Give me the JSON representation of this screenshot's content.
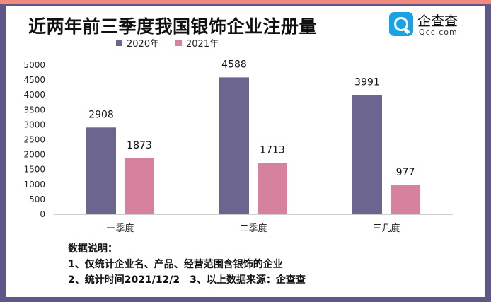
{
  "title": "近两年前三季度我国银饰企业注册量",
  "logo": {
    "name": "企查查",
    "sub": "Qcc.com"
  },
  "colors": {
    "series_2020": "#6b658f",
    "series_2021": "#d6829f",
    "frame": "#5f5785",
    "accent": "#f08a7a"
  },
  "chart_data": {
    "type": "bar",
    "title": "近两年前三季度我国银饰企业注册量",
    "categories": [
      "一季度",
      "二季度",
      "三几度"
    ],
    "series": [
      {
        "name": "2020年",
        "values": [
          2908,
          4588,
          3991
        ]
      },
      {
        "name": "2021年",
        "values": [
          1873,
          1713,
          977
        ]
      }
    ],
    "ylim": [
      0,
      5000
    ],
    "yticks": [
      0,
      500,
      1000,
      1500,
      2000,
      2500,
      3000,
      3500,
      4000,
      4500,
      5000
    ],
    "legend_position": "top",
    "grid": false
  },
  "notes": {
    "heading": "数据说明：",
    "line1": "1、仅统计企业名、产品、经营范围含银饰的企业",
    "line2": "2、统计时间2021/12/2　3、以上数据来源：企查查"
  }
}
